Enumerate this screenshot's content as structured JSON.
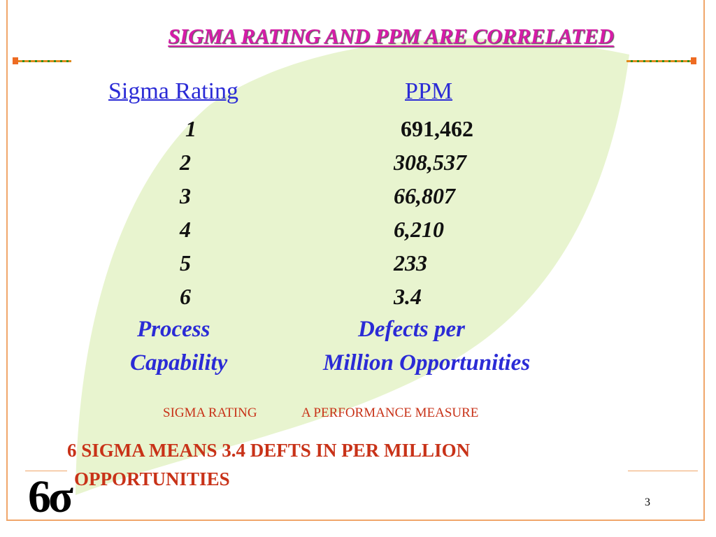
{
  "title": "SIGMA RATING AND PPM ARE CORRELATED",
  "table": {
    "headers": {
      "sigma": "Sigma Rating",
      "ppm": "PPM"
    },
    "rows": [
      {
        "sigma": "1",
        "ppm": "691,462"
      },
      {
        "sigma": "2",
        "ppm": "308,537"
      },
      {
        "sigma": "3",
        "ppm": "66,807"
      },
      {
        "sigma": "4",
        "ppm": "6,210"
      },
      {
        "sigma": "5",
        "ppm": "233"
      },
      {
        "sigma": "6",
        "ppm": "3.4"
      }
    ]
  },
  "captions": {
    "left_line1": "Process",
    "left_line2": "Capability",
    "right_line1": "Defects per",
    "right_line2": "Million Opportunities"
  },
  "subline": {
    "left": "SIGMA RATING",
    "right": "A PERFORMANCE MEASURE"
  },
  "note": {
    "line1": "6 SIGMA  MEANS 3.4 DEFTS IN PER MILLION",
    "line2": "OPPORTUNITIES"
  },
  "footer": {
    "logo": "6σ",
    "page_number": "3"
  },
  "colors": {
    "title": "#d61ca8",
    "header": "#2b2bd6",
    "caption": "#2b2bd6",
    "note": "#c83218",
    "leaf": "#e8f4cf",
    "border": "#f0a66a",
    "accent_orange": "#ee6b22",
    "accent_green": "#2d8f1b"
  }
}
